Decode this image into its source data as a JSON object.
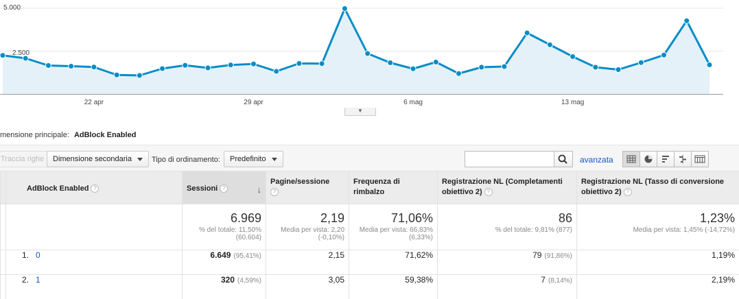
{
  "chart_data": {
    "type": "area",
    "y_ticks": [
      "5.000",
      "2.500"
    ],
    "ylim": [
      0,
      5000
    ],
    "x_tick_labels": [
      {
        "label": "22 apr",
        "index": 4
      },
      {
        "label": "29 apr",
        "index": 11
      },
      {
        "label": "6 mag",
        "index": 18
      },
      {
        "label": "13 mag",
        "index": 25
      }
    ],
    "values": [
      2250,
      2080,
      1660,
      1620,
      1570,
      1110,
      1080,
      1480,
      1670,
      1520,
      1690,
      1750,
      1320,
      1780,
      1770,
      4980,
      2360,
      1820,
      1470,
      1860,
      1190,
      1560,
      1600,
      3560,
      2870,
      2180,
      1560,
      1420,
      1830,
      2270,
      4270,
      1700
    ],
    "line_color": "#058dc7",
    "fill_color": "#e5f1f8"
  },
  "dimension": {
    "label": "mensione principale:",
    "value": "AdBlock Enabled"
  },
  "toolbar": {
    "plot_rows": "Traccia righe",
    "secondary_dimension": "Dimensione secondaria",
    "sort_type_label": "Tipo di ordinamento:",
    "sort_type_value": "Predefinito",
    "search_value": "",
    "advanced": "avanzata",
    "view_icons": [
      "table-view-icon",
      "pie-view-icon",
      "performance-view-icon",
      "comparison-view-icon",
      "pivot-view-icon"
    ]
  },
  "table": {
    "headers": {
      "dimension": "AdBlock Enabled",
      "sessions": "Sessioni",
      "pages": "Pagine/sessione",
      "bounce": "Frequenza di rimbalzo",
      "nl_completions": "Registrazione NL (Completamenti obiettivo 2)",
      "nl_rate": "Registrazione NL (Tasso di conversione obiettivo 2)"
    },
    "totals": {
      "sessions": "6.969",
      "sessions_sub": "% del totale: 11,50% (60.604)",
      "pages": "2,19",
      "pages_sub": "Media per vista: 2,20 (-0,10%)",
      "bounce": "71,06%",
      "bounce_sub": "Media per vista: 66,83% (6,33%)",
      "nl_completions": "86",
      "nl_completions_sub": "% del totale: 9,81% (877)",
      "nl_rate": "1,23%",
      "nl_rate_sub": "Media per vista: 1,45% (-14,72%)"
    },
    "rows": [
      {
        "index": "1.",
        "label": "0",
        "sessions": "6.649",
        "sessions_pct": "(95,41%)",
        "pages": "2,15",
        "bounce": "71,62%",
        "nl_completions": "79",
        "nl_completions_pct": "(91,86%)",
        "nl_rate": "1,19%"
      },
      {
        "index": "2.",
        "label": "1",
        "sessions": "320",
        "sessions_pct": "(4,59%)",
        "pages": "3,05",
        "bounce": "59,38%",
        "nl_completions": "7",
        "nl_completions_pct": "(8,14%)",
        "nl_rate": "2,19%"
      }
    ]
  }
}
